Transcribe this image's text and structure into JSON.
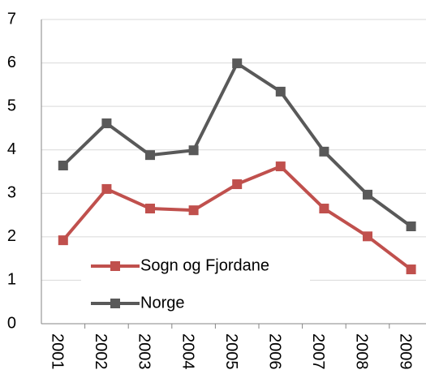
{
  "chart_data": {
    "type": "line",
    "categories": [
      "2001",
      "2002",
      "2003",
      "2004",
      "2005",
      "2006",
      "2007",
      "2008",
      "2009"
    ],
    "series": [
      {
        "name": "Sogn og Fjordane",
        "color": "#c0504d",
        "values": [
          1.92,
          3.1,
          2.65,
          2.61,
          3.21,
          3.62,
          2.65,
          2.01,
          1.25
        ]
      },
      {
        "name": "Norge",
        "color": "#595959",
        "values": [
          3.64,
          4.61,
          3.88,
          3.99,
          5.99,
          5.34,
          3.96,
          2.97,
          2.24
        ]
      }
    ],
    "ylim": [
      0,
      7
    ],
    "yticks": [
      0,
      1,
      2,
      3,
      4,
      5,
      6,
      7
    ],
    "grid": true,
    "legend": "lower left"
  }
}
